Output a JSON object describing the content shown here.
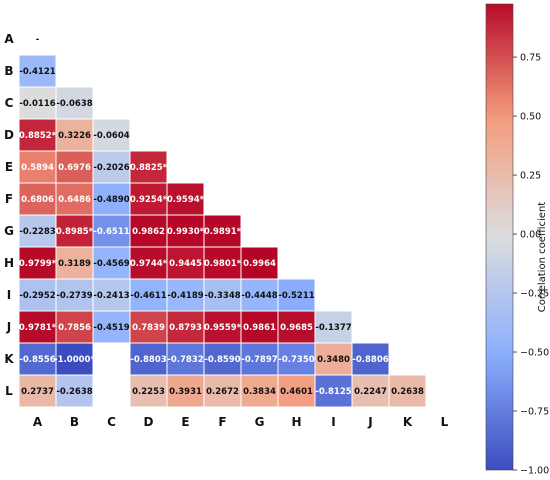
{
  "chart_data": {
    "type": "heatmap",
    "subtype": "lower-triangle-correlation",
    "labels": [
      "A",
      "B",
      "C",
      "D",
      "E",
      "F",
      "G",
      "H",
      "I",
      "J",
      "K",
      "L"
    ],
    "matrix": [
      [
        null,
        null,
        null,
        null,
        null,
        null,
        null,
        null,
        null,
        null,
        null,
        null
      ],
      [
        -0.4121,
        null,
        null,
        null,
        null,
        null,
        null,
        null,
        null,
        null,
        null,
        null
      ],
      [
        -0.0116,
        -0.0638,
        null,
        null,
        null,
        null,
        null,
        null,
        null,
        null,
        null,
        null
      ],
      [
        0.8852,
        0.3226,
        -0.0604,
        null,
        null,
        null,
        null,
        null,
        null,
        null,
        null,
        null
      ],
      [
        0.5894,
        0.6976,
        -0.2026,
        0.8825,
        null,
        null,
        null,
        null,
        null,
        null,
        null,
        null
      ],
      [
        0.6806,
        0.6486,
        -0.489,
        0.9254,
        0.9594,
        null,
        null,
        null,
        null,
        null,
        null,
        null
      ],
      [
        -0.2283,
        0.8985,
        -0.6511,
        0.9862,
        0.993,
        0.9891,
        null,
        null,
        null,
        null,
        null,
        null
      ],
      [
        0.9799,
        0.3189,
        -0.4569,
        0.9744,
        0.9445,
        0.9801,
        0.9964,
        null,
        null,
        null,
        null,
        null
      ],
      [
        -0.2952,
        -0.2739,
        -0.2413,
        -0.4611,
        -0.4189,
        -0.3348,
        -0.4448,
        -0.5211,
        null,
        null,
        null,
        null
      ],
      [
        0.9781,
        0.7856,
        -0.4519,
        0.7839,
        0.8793,
        0.9559,
        0.9861,
        0.9685,
        -0.1377,
        null,
        null,
        null
      ],
      [
        -0.8556,
        -1.0,
        null,
        -0.8803,
        -0.7832,
        -0.859,
        -0.7897,
        -0.735,
        0.348,
        -0.8806,
        null,
        null
      ],
      [
        0.2737,
        -0.2638,
        null,
        0.2253,
        0.3931,
        0.2672,
        0.3834,
        0.4601,
        -0.8125,
        0.2247,
        0.2638,
        null
      ]
    ],
    "cell_text": [
      [
        "-",
        "",
        "",
        "",
        "",
        "",
        "",
        "",
        "",
        "",
        "",
        ""
      ],
      [
        "-0.4121",
        "",
        "",
        "",
        "",
        "",
        "",
        "",
        "",
        "",
        "",
        ""
      ],
      [
        "-0.0116",
        "-0.0638",
        "",
        "",
        "",
        "",
        "",
        "",
        "",
        "",
        "",
        ""
      ],
      [
        "0.8852*",
        "0.3226",
        "-0.0604",
        "",
        "",
        "",
        "",
        "",
        "",
        "",
        "",
        ""
      ],
      [
        "0.5894",
        "0.6976",
        "-0.2026",
        "0.8825*",
        "",
        "",
        "",
        "",
        "",
        "",
        "",
        ""
      ],
      [
        "0.6806",
        "0.6486",
        "-0.4890",
        "0.9254*",
        "0.9594*",
        "",
        "",
        "",
        "",
        "",
        "",
        ""
      ],
      [
        "-0.2283",
        "0.8985*",
        "-0.6511",
        "0.9862",
        "0.9930*",
        "0.9891*",
        "",
        "",
        "",
        "",
        "",
        ""
      ],
      [
        "0.9799*",
        "0.3189",
        "-0.4569",
        "0.9744*",
        "0.9445",
        "0.9801*",
        "0.9964",
        "",
        "",
        "",
        "",
        ""
      ],
      [
        "-0.2952",
        "-0.2739",
        "-0.2413",
        "-0.4611",
        "-0.4189",
        "-0.3348",
        "-0.4448",
        "-0.5211",
        "",
        "",
        "",
        ""
      ],
      [
        "0.9781*",
        "0.7856",
        "-0.4519",
        "0.7839",
        "0.8793",
        "0.9559*",
        "0.9861",
        "0.9685",
        "-0.1377",
        "",
        "",
        ""
      ],
      [
        "-0.8556",
        "-1.0000*",
        "",
        "-0.8803",
        "-0.7832",
        "-0.8590",
        "-0.7897",
        "-0.7350",
        "0.3480",
        "-0.8806",
        "",
        ""
      ],
      [
        "0.2737",
        "-0.2638",
        "",
        "0.2253",
        "0.3931",
        "0.2672",
        "0.3834",
        "0.4601",
        "-0.8125",
        "0.2247",
        "0.2638",
        ""
      ]
    ],
    "colorbar": {
      "label": "Correlation coefficient",
      "range": [
        -1.0,
        0.975
      ],
      "ticks": [
        0.75,
        0.5,
        0.25,
        0.0,
        -0.25,
        -0.5,
        -0.75,
        -1.0
      ],
      "tick_labels": [
        "0.75",
        "0.50",
        "0.25",
        "0.00",
        "−0.25",
        "−0.50",
        "−0.75",
        "−1.00"
      ],
      "colormap": "coolwarm"
    },
    "colors": {
      "low": "#3b4cc0",
      "mid": "#dddddd",
      "high": "#b40426"
    }
  }
}
